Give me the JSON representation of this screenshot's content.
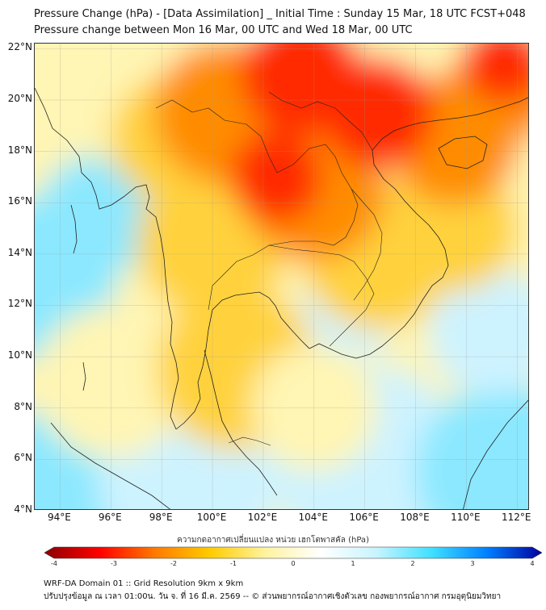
{
  "header": {
    "title_line1": "Pressure Change (hPa) - [Data Assimilation] _ Initial Time : Sunday 15 Mar, 18 UTC FCST+048",
    "title_line2": "Pressure change between Mon 16 Mar, 00 UTC and Wed 18 Mar, 00 UTC"
  },
  "map": {
    "lat_labels": [
      "22°N",
      "20°N",
      "18°N",
      "16°N",
      "14°N",
      "12°N",
      "10°N",
      "8°N",
      "6°N",
      "4°N"
    ],
    "lon_labels": [
      "94°E",
      "96°E",
      "98°E",
      "100°E",
      "102°E",
      "104°E",
      "106°E",
      "108°E",
      "110°E",
      "112°E"
    ],
    "lat_range": [
      4,
      22.2
    ],
    "lon_range": [
      93,
      112.5
    ],
    "field_colors": {
      "strong_rise": "#ff2a00",
      "rise": "#ff8c00",
      "weak_rise": "#ffd23c",
      "slight_rise": "#fff5b4",
      "neutral": "#ffffff",
      "slight_fall": "#cdf3ff",
      "fall": "#8be8ff"
    }
  },
  "colorbar": {
    "title": "ความกดอากาศเปลี่ยนแปลง หน่วย เฮกโตพาสคัล (hPa)",
    "ticks": [
      "-4",
      "-3",
      "-2",
      "-1",
      "0",
      "1",
      "2",
      "3",
      "4"
    ],
    "range": [
      -4,
      4
    ],
    "colors": [
      "#8b0000",
      "#ff0000",
      "#ff7a00",
      "#ffcc00",
      "#fff3a0",
      "#ffffff",
      "#c8f4ff",
      "#40e0ff",
      "#0080ff",
      "#0000a0"
    ]
  },
  "footer": {
    "line1": "WRF-DA Domain 01 :: Grid Resolution 9km x 9km",
    "line2": "ปรับปรุงข้อมูล ณ เวลา 01:00น. วัน จ. ที่ 16 มี.ค. 2569 -- © ส่วนพยากรณ์อากาศเชิงตัวเลข กองพยากรณ์อากาศ กรมอุตุนิยมวิทยา"
  }
}
